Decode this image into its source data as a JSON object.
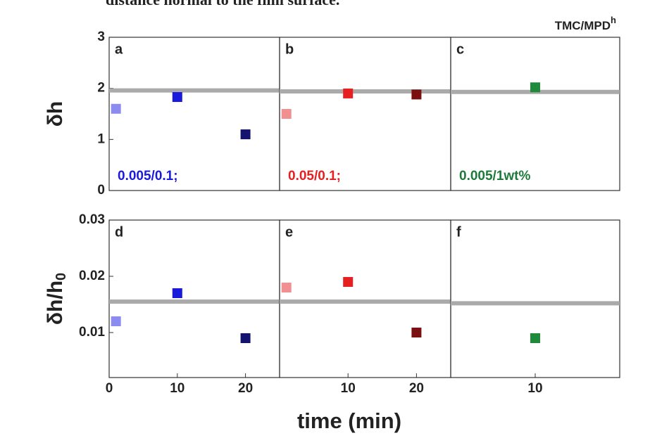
{
  "caption": "distance normal to the film surface.",
  "chart_data": [
    {
      "type": "scatter",
      "label": "a",
      "annotation": "0.005/0.1;",
      "annotation_color": "#1a1add",
      "ylabel": "δh",
      "x": [
        1,
        10,
        20
      ],
      "values": [
        1.6,
        1.83,
        1.1
      ],
      "colors": [
        "#8c8cf0",
        "#1a1add",
        "#14146e"
      ],
      "reference_line": 1.96,
      "xlim": [
        0,
        25
      ],
      "ylim": [
        0,
        3
      ],
      "yticks": [
        0,
        1,
        2,
        3
      ]
    },
    {
      "type": "scatter",
      "label": "b",
      "annotation": "0.05/0.1;",
      "annotation_color": "#e62020",
      "x": [
        1,
        10,
        20
      ],
      "values": [
        1.5,
        1.9,
        1.88
      ],
      "colors": [
        "#f09090",
        "#e62020",
        "#7a1010"
      ],
      "reference_line": 1.94,
      "xlim": [
        0,
        25
      ],
      "ylim": [
        0,
        3
      ]
    },
    {
      "type": "scatter",
      "label": "c",
      "annotation": "0.005/1wt%",
      "annotation_color": "#1e7a3a",
      "title": "TMC/MPD",
      "title_sup": "h",
      "x": [
        10
      ],
      "values": [
        2.02
      ],
      "colors": [
        "#1e8a3a"
      ],
      "reference_line": 1.93,
      "xlim": [
        0,
        20
      ],
      "ylim": [
        0,
        3
      ]
    },
    {
      "type": "scatter",
      "label": "d",
      "ylabel": "δh/h",
      "ylabel_sub": "0",
      "x": [
        1,
        10,
        20
      ],
      "values": [
        0.012,
        0.017,
        0.009
      ],
      "colors": [
        "#8c8cf0",
        "#1a1add",
        "#14146e"
      ],
      "reference_line": 0.0155,
      "xlim": [
        0,
        25
      ],
      "ylim": [
        0.002,
        0.03
      ],
      "yticks": [
        0.01,
        0.02,
        0.03
      ],
      "xticks": [
        0,
        10,
        20
      ]
    },
    {
      "type": "scatter",
      "label": "e",
      "xlabel": "time (min)",
      "x": [
        1,
        10,
        20
      ],
      "values": [
        0.018,
        0.019,
        0.01
      ],
      "colors": [
        "#f09090",
        "#e62020",
        "#7a1010"
      ],
      "reference_line": 0.0155,
      "xlim": [
        0,
        25
      ],
      "ylim": [
        0.002,
        0.03
      ],
      "xticks": [
        10,
        20
      ]
    },
    {
      "type": "scatter",
      "label": "f",
      "x": [
        10
      ],
      "values": [
        0.009
      ],
      "colors": [
        "#1e8a3a"
      ],
      "reference_line": 0.0152,
      "xlim": [
        0,
        20
      ],
      "ylim": [
        0.002,
        0.03
      ],
      "xticks": [
        10
      ]
    }
  ]
}
